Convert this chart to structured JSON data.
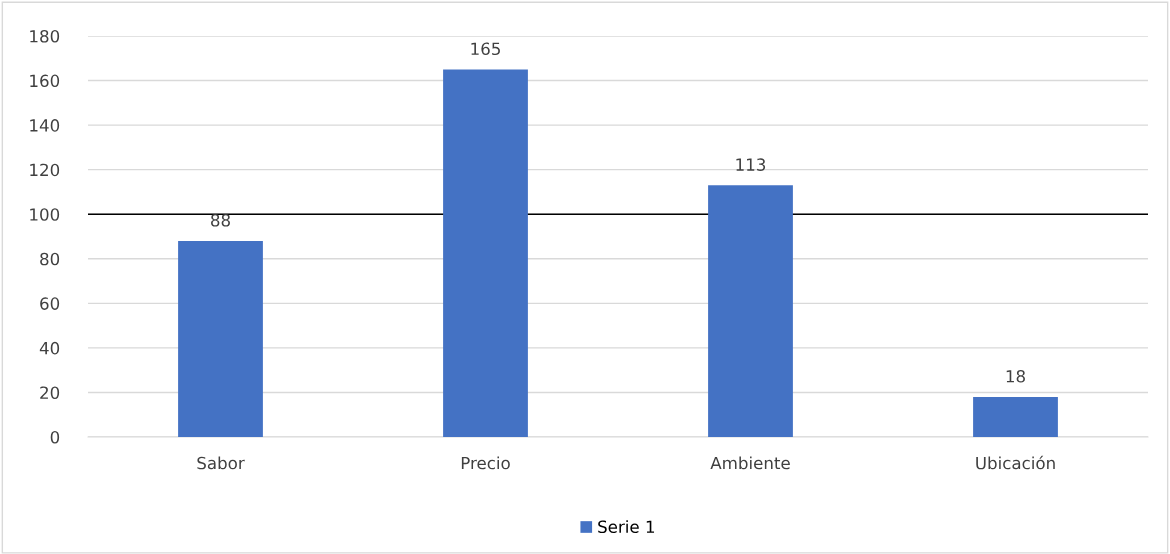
{
  "chart_data": {
    "type": "bar",
    "categories": [
      "Sabor",
      "Precio",
      "Ambiente",
      "Ubicación"
    ],
    "series": [
      {
        "name": "Serie 1",
        "color": "#4472c4",
        "values": [
          88,
          165,
          113,
          18
        ]
      }
    ],
    "ylim": [
      0,
      180
    ],
    "yticks": [
      0,
      20,
      40,
      60,
      80,
      100,
      120,
      140,
      160,
      180
    ],
    "grid": "y",
    "legend": "bottom",
    "data_labels": true,
    "ref_lines": [
      {
        "axis": "y",
        "value": 100,
        "color": "#000000"
      }
    ]
  }
}
